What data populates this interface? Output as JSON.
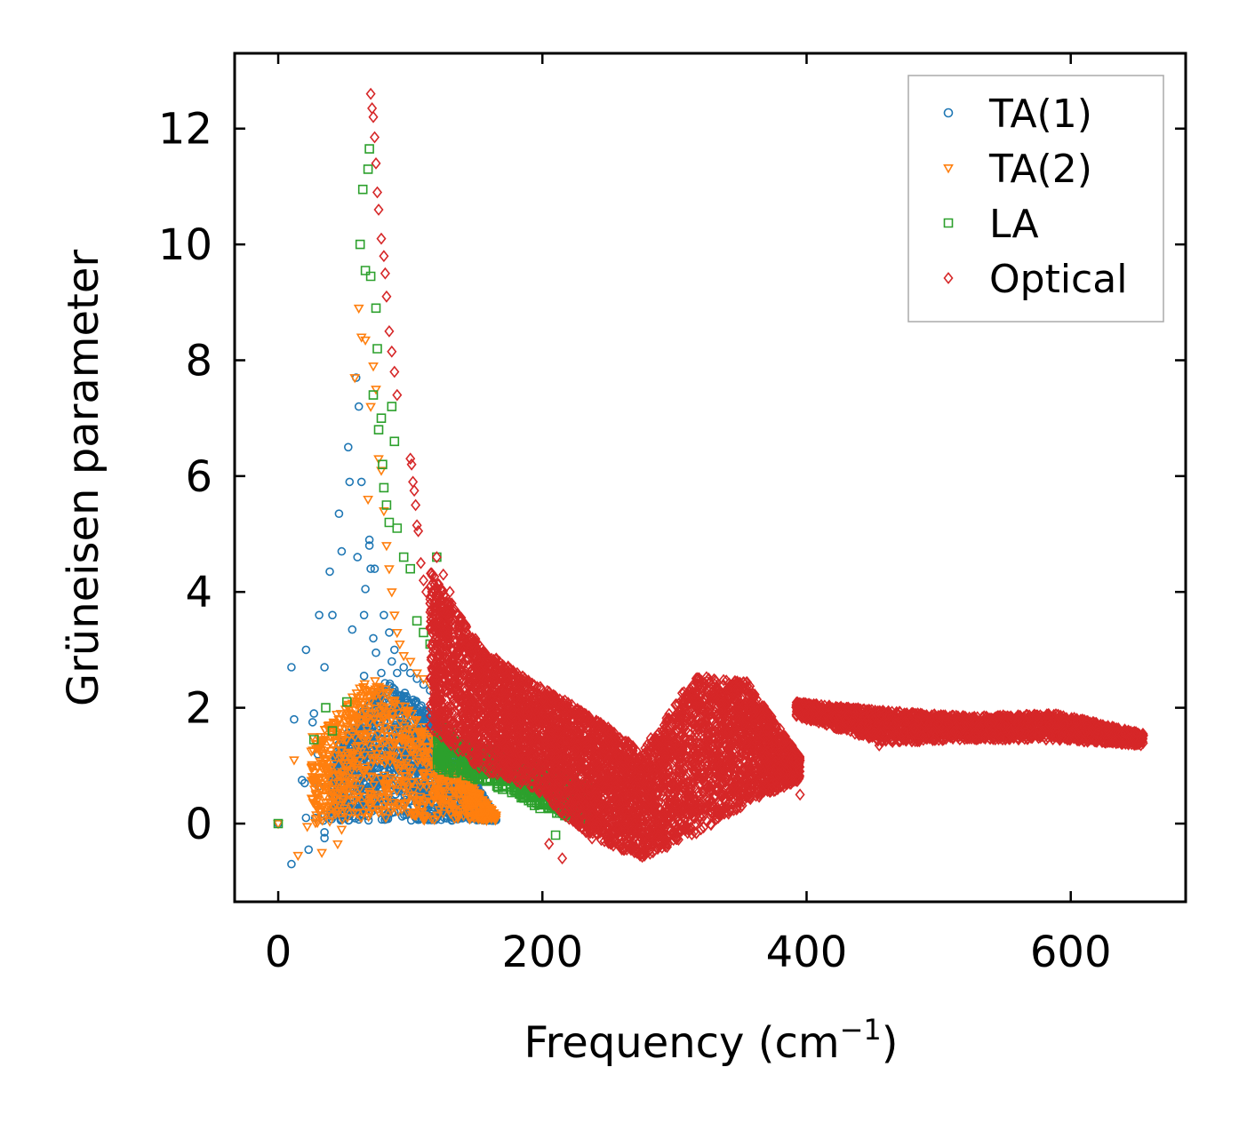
{
  "chart_data": {
    "type": "scatter",
    "title": "",
    "xlabel": "Frequency (cm",
    "xlabel_sup": "−1",
    "xlabel_end": ")",
    "ylabel": "Grüneisen parameter",
    "xlim": [
      -33,
      687
    ],
    "ylim": [
      -1.35,
      13.3
    ],
    "grid": false,
    "legend_position": "top-right",
    "x_ticks": [
      {
        "value": 0,
        "label": "0"
      },
      {
        "value": 200,
        "label": "200"
      },
      {
        "value": 400,
        "label": "400"
      },
      {
        "value": 600,
        "label": "600"
      }
    ],
    "y_ticks": [
      {
        "value": 0,
        "label": "0"
      },
      {
        "value": 2,
        "label": "2"
      },
      {
        "value": 4,
        "label": "4"
      },
      {
        "value": 6,
        "label": "6"
      },
      {
        "value": 8,
        "label": "8"
      },
      {
        "value": 10,
        "label": "10"
      },
      {
        "value": 12,
        "label": "12"
      }
    ],
    "series": [
      {
        "name": "TA(1)",
        "marker": "circle",
        "color": "#1f77b4",
        "points": [
          [
            0,
            0
          ],
          [
            10,
            -0.7
          ],
          [
            10,
            2.7
          ],
          [
            12,
            1.8
          ],
          [
            18,
            0.75
          ],
          [
            20,
            0.7
          ],
          [
            21,
            3.0
          ],
          [
            21,
            0.1
          ],
          [
            23,
            -0.45
          ],
          [
            26,
            1.75
          ],
          [
            27,
            1.9
          ],
          [
            28,
            0.1
          ],
          [
            30,
            1.2
          ],
          [
            31,
            0.65
          ],
          [
            31,
            3.6
          ],
          [
            34,
            0.05
          ],
          [
            35,
            -0.25
          ],
          [
            35,
            -0.15
          ],
          [
            35,
            0.15
          ],
          [
            35,
            2.7
          ],
          [
            37,
            0.1
          ],
          [
            39,
            4.35
          ],
          [
            41,
            3.6
          ],
          [
            42,
            0.25
          ],
          [
            44,
            1.0
          ],
          [
            46,
            5.35
          ],
          [
            48,
            4.7
          ],
          [
            50,
            0.1
          ],
          [
            52,
            1.2
          ],
          [
            53,
            6.5
          ],
          [
            54,
            5.9
          ],
          [
            56,
            3.35
          ],
          [
            59,
            7.7
          ],
          [
            60,
            4.6
          ],
          [
            61,
            7.2
          ],
          [
            63,
            5.9
          ],
          [
            65,
            2.55
          ],
          [
            65,
            3.6
          ],
          [
            66,
            4.05
          ],
          [
            69,
            4.9
          ],
          [
            69,
            4.8
          ],
          [
            70,
            4.4
          ],
          [
            72,
            3.2
          ],
          [
            73,
            4.4
          ],
          [
            74,
            2.95
          ],
          [
            78,
            2.6
          ],
          [
            80,
            3.6
          ],
          [
            84,
            3.3
          ],
          [
            86,
            2.8
          ],
          [
            88,
            3.0
          ],
          [
            90,
            2.6
          ],
          [
            95,
            2.7
          ],
          [
            100,
            2.6
          ],
          [
            105,
            2.5
          ],
          [
            110,
            2.4
          ],
          [
            115,
            2.3
          ]
        ],
        "clouds": [
          {
            "x_range": [
              40,
              165
            ],
            "y_top": [
              1.2,
              2.5,
              1.8,
              0.1
            ],
            "y_bottom": [
              0.05,
              0.05,
              0.05,
              0.05
            ],
            "count": 1500
          }
        ]
      },
      {
        "name": "TA(2)",
        "marker": "triangle-down",
        "color": "#ff7f0e",
        "points": [
          [
            0,
            0
          ],
          [
            12,
            1.1
          ],
          [
            15,
            -0.55
          ],
          [
            22,
            -0.05
          ],
          [
            25,
            1.25
          ],
          [
            26,
            1.5
          ],
          [
            27,
            0.75
          ],
          [
            30,
            0.3
          ],
          [
            33,
            -0.5
          ],
          [
            35,
            1.1
          ],
          [
            38,
            1.2
          ],
          [
            45,
            -0.35
          ],
          [
            48,
            -0.1
          ],
          [
            50,
            0.6
          ],
          [
            58,
            7.7
          ],
          [
            61,
            8.9
          ],
          [
            63,
            8.4
          ],
          [
            66,
            8.35
          ],
          [
            68,
            5.6
          ],
          [
            70,
            7.2
          ],
          [
            72,
            7.9
          ],
          [
            74,
            7.5
          ],
          [
            76,
            6.3
          ],
          [
            78,
            6.1
          ],
          [
            80,
            5.4
          ],
          [
            82,
            4.8
          ],
          [
            84,
            4.4
          ],
          [
            86,
            4.0
          ],
          [
            88,
            3.6
          ],
          [
            90,
            3.3
          ],
          [
            92,
            3.1
          ],
          [
            95,
            2.9
          ],
          [
            100,
            2.8
          ],
          [
            105,
            2.6
          ],
          [
            110,
            2.5
          ],
          [
            115,
            2.4
          ]
        ],
        "clouds": [
          {
            "x_range": [
              25,
              165
            ],
            "y_top": [
              1.4,
              2.6,
              1.5,
              0.15
            ],
            "y_bottom": [
              0.0,
              0.1,
              0.05,
              0.05
            ],
            "count": 900
          }
        ]
      },
      {
        "name": "LA",
        "marker": "square",
        "color": "#2ca02c",
        "points": [
          [
            0,
            0
          ],
          [
            27,
            1.45
          ],
          [
            36,
            2.0
          ],
          [
            41,
            1.6
          ],
          [
            52,
            2.1
          ],
          [
            62,
            10.0
          ],
          [
            64,
            10.95
          ],
          [
            66,
            9.55
          ],
          [
            68,
            11.3
          ],
          [
            69,
            11.65
          ],
          [
            70,
            9.45
          ],
          [
            72,
            7.4
          ],
          [
            74,
            8.9
          ],
          [
            75,
            8.2
          ],
          [
            76,
            6.8
          ],
          [
            78,
            7.0
          ],
          [
            79,
            6.2
          ],
          [
            80,
            5.8
          ],
          [
            82,
            5.5
          ],
          [
            84,
            5.2
          ],
          [
            86,
            7.2
          ],
          [
            88,
            6.6
          ],
          [
            90,
            5.1
          ],
          [
            95,
            4.6
          ],
          [
            100,
            4.4
          ],
          [
            105,
            3.5
          ],
          [
            110,
            3.3
          ],
          [
            115,
            3.1
          ],
          [
            120,
            4.6
          ],
          [
            125,
            1.8
          ],
          [
            130,
            1.6
          ],
          [
            140,
            1.35
          ],
          [
            150,
            1.1
          ],
          [
            160,
            1.05
          ],
          [
            170,
            0.95
          ],
          [
            180,
            0.8
          ],
          [
            190,
            0.7
          ],
          [
            200,
            0.55
          ],
          [
            210,
            -0.2
          ],
          [
            215,
            0.2
          ],
          [
            220,
            0.15
          ],
          [
            225,
            0.45
          ],
          [
            230,
            0.8
          ],
          [
            235,
            0.5
          ]
        ],
        "clouds": [
          {
            "x_range": [
              120,
              238
            ],
            "y_top": [
              1.55,
              1.3,
              0.95,
              0.6
            ],
            "y_bottom": [
              0.95,
              0.7,
              0.25,
              -0.05
            ],
            "count": 650
          }
        ]
      },
      {
        "name": "Optical",
        "marker": "diamond",
        "color": "#d62728",
        "points": [
          [
            70,
            12.6
          ],
          [
            71,
            12.35
          ],
          [
            72,
            12.2
          ],
          [
            73,
            11.85
          ],
          [
            74,
            11.4
          ],
          [
            75,
            10.9
          ],
          [
            76,
            10.6
          ],
          [
            78,
            10.1
          ],
          [
            80,
            9.8
          ],
          [
            81,
            9.5
          ],
          [
            82,
            9.1
          ],
          [
            84,
            8.5
          ],
          [
            86,
            8.15
          ],
          [
            88,
            7.8
          ],
          [
            90,
            7.4
          ],
          [
            100,
            6.3
          ],
          [
            101,
            6.2
          ],
          [
            102,
            5.9
          ],
          [
            103,
            5.75
          ],
          [
            104,
            5.5
          ],
          [
            105,
            5.15
          ],
          [
            106,
            5.05
          ],
          [
            108,
            4.5
          ],
          [
            110,
            4.2
          ],
          [
            112,
            4.0
          ],
          [
            115,
            3.8
          ],
          [
            120,
            4.6
          ],
          [
            125,
            4.3
          ],
          [
            130,
            4.0
          ],
          [
            205,
            -0.35
          ],
          [
            215,
            -0.6
          ],
          [
            260,
            -0.35
          ],
          [
            320,
            -0.1
          ],
          [
            395,
            0.5
          ],
          [
            455,
            1.35
          ]
        ],
        "clouds": [
          {
            "x_range": [
              115,
              395
            ],
            "y_top": [
              4.4,
              3.0,
              2.4,
              1.9,
              1.25,
              2.55,
              2.45,
              1.15
            ],
            "y_bottom": [
              1.6,
              0.9,
              0.6,
              -0.25,
              -0.6,
              -0.2,
              0.35,
              0.75
            ],
            "count": 5200
          },
          {
            "x_range": [
              392,
              655
            ],
            "y_top": [
              2.1,
              1.95,
              1.85,
              1.9,
              1.55
            ],
            "y_bottom": [
              1.85,
              1.4,
              1.45,
              1.45,
              1.35
            ],
            "count": 2400
          }
        ]
      }
    ]
  }
}
